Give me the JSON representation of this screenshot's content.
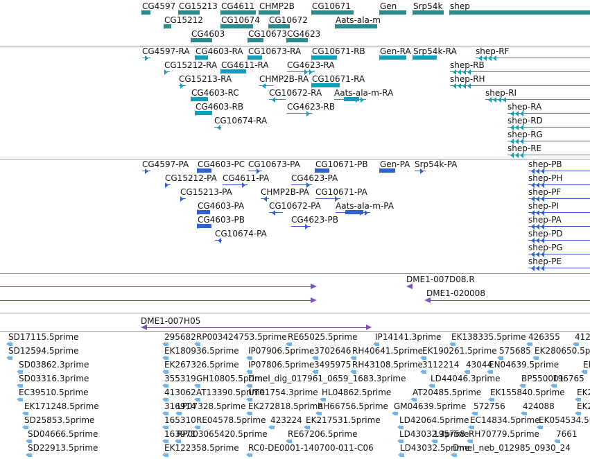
{
  "colors": {
    "genes": "#2a8c8c",
    "mrna": "#12a0b8",
    "protein": "#2f62cc",
    "clone": "#7b55b5",
    "est": "#74b3e6",
    "separator": "#9a9a9a"
  },
  "tracks": {
    "genes": [
      {
        "label": "CG4597",
        "name": "gene-CG4597"
      },
      {
        "label": "CG15213",
        "name": "gene-CG15213"
      },
      {
        "label": "CG4611",
        "name": "gene-CG4611"
      },
      {
        "label": "CHMP2B",
        "name": "gene-CHMP2B"
      },
      {
        "label": "CG10671",
        "name": "gene-CG10671"
      },
      {
        "label": "Gen",
        "name": "gene-Gen"
      },
      {
        "label": "Srp54k",
        "name": "gene-Srp54k"
      },
      {
        "label": "shep",
        "name": "gene-shep"
      },
      {
        "label": "CG15212",
        "name": "gene-CG15212"
      },
      {
        "label": "CG10674",
        "name": "gene-CG10674"
      },
      {
        "label": "CG10672",
        "name": "gene-CG10672"
      },
      {
        "label": "Aats-ala-m",
        "name": "gene-Aats-ala-m"
      },
      {
        "label": "CG4603",
        "name": "gene-CG4603"
      },
      {
        "label": "CG10673",
        "name": "gene-CG10673"
      },
      {
        "label": "CG4623",
        "name": "gene-CG4623"
      }
    ],
    "transcripts": [
      {
        "label": "CG4597-RA",
        "name": "transcript-CG4597-RA"
      },
      {
        "label": "CG4603-RA",
        "name": "transcript-CG4603-RA"
      },
      {
        "label": "CG10673-RA",
        "name": "transcript-CG10673-RA"
      },
      {
        "label": "CG10671-RB",
        "name": "transcript-CG10671-RB"
      },
      {
        "label": "Gen-RA",
        "name": "transcript-Gen-RA"
      },
      {
        "label": "Srp54k-RA",
        "name": "transcript-Srp54k-RA"
      },
      {
        "label": "shep-RF",
        "name": "transcript-shep-RF"
      },
      {
        "label": "CG15212-RA",
        "name": "transcript-CG15212-RA"
      },
      {
        "label": "CG4611-RA",
        "name": "transcript-CG4611-RA"
      },
      {
        "label": "CG4623-RA",
        "name": "transcript-CG4623-RA"
      },
      {
        "label": "shep-RB",
        "name": "transcript-shep-RB"
      },
      {
        "label": "CG15213-RA",
        "name": "transcript-CG15213-RA"
      },
      {
        "label": "CHMP2B-RA",
        "name": "transcript-CHMP2B-RA"
      },
      {
        "label": "CG10671-RA",
        "name": "transcript-CG10671-RA"
      },
      {
        "label": "shep-RH",
        "name": "transcript-shep-RH"
      },
      {
        "label": "CG4603-RC",
        "name": "transcript-CG4603-RC"
      },
      {
        "label": "CG10672-RA",
        "name": "transcript-CG10672-RA"
      },
      {
        "label": "Aats-ala-m-RA",
        "name": "transcript-Aats-ala-m-RA"
      },
      {
        "label": "shep-RI",
        "name": "transcript-shep-RI"
      },
      {
        "label": "CG4603-RB",
        "name": "transcript-CG4603-RB"
      },
      {
        "label": "CG4623-RB",
        "name": "transcript-CG4623-RB"
      },
      {
        "label": "shep-RA",
        "name": "transcript-shep-RA"
      },
      {
        "label": "CG10674-RA",
        "name": "transcript-CG10674-RA"
      },
      {
        "label": "shep-RD",
        "name": "transcript-shep-RD"
      },
      {
        "label": "shep-RG",
        "name": "transcript-shep-RG"
      },
      {
        "label": "shep-RE",
        "name": "transcript-shep-RE"
      }
    ],
    "proteins": [
      {
        "label": "CG4597-PA",
        "name": "protein-CG4597-PA"
      },
      {
        "label": "CG4603-PC",
        "name": "protein-CG4603-PC"
      },
      {
        "label": "CG10673-PA",
        "name": "protein-CG10673-PA"
      },
      {
        "label": "CG10671-PB",
        "name": "protein-CG10671-PB"
      },
      {
        "label": "Gen-PA",
        "name": "protein-Gen-PA"
      },
      {
        "label": "Srp54k-PA",
        "name": "protein-Srp54k-PA"
      },
      {
        "label": "shep-PB",
        "name": "protein-shep-PB"
      },
      {
        "label": "CG15212-PA",
        "name": "protein-CG15212-PA"
      },
      {
        "label": "CG4611-PA",
        "name": "protein-CG4611-PA"
      },
      {
        "label": "CG4623-PA",
        "name": "protein-CG4623-PA"
      },
      {
        "label": "shep-PH",
        "name": "protein-shep-PH"
      },
      {
        "label": "CG15213-PA",
        "name": "protein-CG15213-PA"
      },
      {
        "label": "CHMP2B-PA",
        "name": "protein-CHMP2B-PA"
      },
      {
        "label": "CG10671-PA",
        "name": "protein-CG10671-PA"
      },
      {
        "label": "shep-PF",
        "name": "protein-shep-PF"
      },
      {
        "label": "CG4603-PA",
        "name": "protein-CG4603-PA"
      },
      {
        "label": "CG10672-PA",
        "name": "protein-CG10672-PA"
      },
      {
        "label": "Aats-ala-m-PA",
        "name": "protein-Aats-ala-m-PA"
      },
      {
        "label": "shep-PI",
        "name": "protein-shep-PI"
      },
      {
        "label": "CG4603-PB",
        "name": "protein-CG4603-PB"
      },
      {
        "label": "CG4623-PB",
        "name": "protein-CG4623-PB"
      },
      {
        "label": "shep-PA",
        "name": "protein-shep-PA"
      },
      {
        "label": "CG10674-PA",
        "name": "protein-CG10674-PA"
      },
      {
        "label": "shep-PD",
        "name": "protein-shep-PD"
      },
      {
        "label": "shep-PG",
        "name": "protein-shep-PG"
      },
      {
        "label": "shep-PE",
        "name": "protein-shep-PE"
      }
    ],
    "clones": [
      {
        "label": "DME1-007D08.R",
        "name": "clone-DME1-007D08.R"
      },
      {
        "label": "DME1-020008",
        "name": "clone-DME1-020008"
      }
    ],
    "clone_bottom": {
      "label": "DME1-007H05",
      "name": "clone-DME1-007H05"
    },
    "ests": [
      {
        "label": "SD17115.5prime"
      },
      {
        "label": "295682"
      },
      {
        "label": "RP003424753.5prime"
      },
      {
        "label": "RE65025.5prime"
      },
      {
        "label": "IP14141.3prime"
      },
      {
        "label": "EK138335.5prime"
      },
      {
        "label": "426355"
      },
      {
        "label": "412"
      },
      {
        "label": "SD12594.5prime"
      },
      {
        "label": "EK180936.5prime"
      },
      {
        "label": "IP07906.5prime"
      },
      {
        "label": "3702646"
      },
      {
        "label": "RH40641.5prime"
      },
      {
        "label": "EK190261.5prime"
      },
      {
        "label": "575685"
      },
      {
        "label": "EK280650.5prime"
      },
      {
        "label": "SD03862.3prime"
      },
      {
        "label": "EK267326.5prime"
      },
      {
        "label": "IP07806.5prime"
      },
      {
        "label": "3495975"
      },
      {
        "label": "RH43108.5prime"
      },
      {
        "label": "3112214"
      },
      {
        "label": "43044"
      },
      {
        "label": "EN04639.5prime"
      },
      {
        "label": "EK280"
      },
      {
        "label": "SD03316.3prime"
      },
      {
        "label": "355319"
      },
      {
        "label": "GH10805.5prime"
      },
      {
        "label": "Dmel_dig_017961_0659_1683.3prime"
      },
      {
        "label": "LD44046.3prime"
      },
      {
        "label": "BP550001"
      },
      {
        "label": "196765"
      },
      {
        "label": "EC39510.5prime"
      },
      {
        "label": "413062"
      },
      {
        "label": "AT13390.5prime"
      },
      {
        "label": "UT01754.3prime"
      },
      {
        "label": "HL04862.5prime"
      },
      {
        "label": "AT20485.5prime"
      },
      {
        "label": "EK155840.5prime"
      },
      {
        "label": "EK2"
      },
      {
        "label": "EK171248.5prime"
      },
      {
        "label": "316914"
      },
      {
        "label": "LP07328.5prime"
      },
      {
        "label": "EK272818.5prime"
      },
      {
        "label": "RH66756.5prime"
      },
      {
        "label": "GM04639.5prime"
      },
      {
        "label": "572756"
      },
      {
        "label": "424088"
      },
      {
        "label": "EK2"
      },
      {
        "label": "SD25853.5prime"
      },
      {
        "label": "165310"
      },
      {
        "label": "RE04578.5prime"
      },
      {
        "label": "423224"
      },
      {
        "label": "EK217531.5prime"
      },
      {
        "label": "LD42064.5prime"
      },
      {
        "label": "EC14834.5prime"
      },
      {
        "label": "EK054534.5prime"
      },
      {
        "label": "SD04666.5prime"
      },
      {
        "label": "163971"
      },
      {
        "label": "RP003065420.5prime"
      },
      {
        "label": "RE67206.5prime"
      },
      {
        "label": "LD43032.3prime"
      },
      {
        "label": "195758"
      },
      {
        "label": "RH70779.5prime"
      },
      {
        "label": "7661"
      },
      {
        "label": "SD22913.5prime"
      },
      {
        "label": "EK122358.5prime"
      },
      {
        "label": "RC0-DE0001-140700-011-C06"
      },
      {
        "label": "LD43032.5prime"
      },
      {
        "label": "Dmel_neb_012985_0930_24"
      }
    ]
  }
}
